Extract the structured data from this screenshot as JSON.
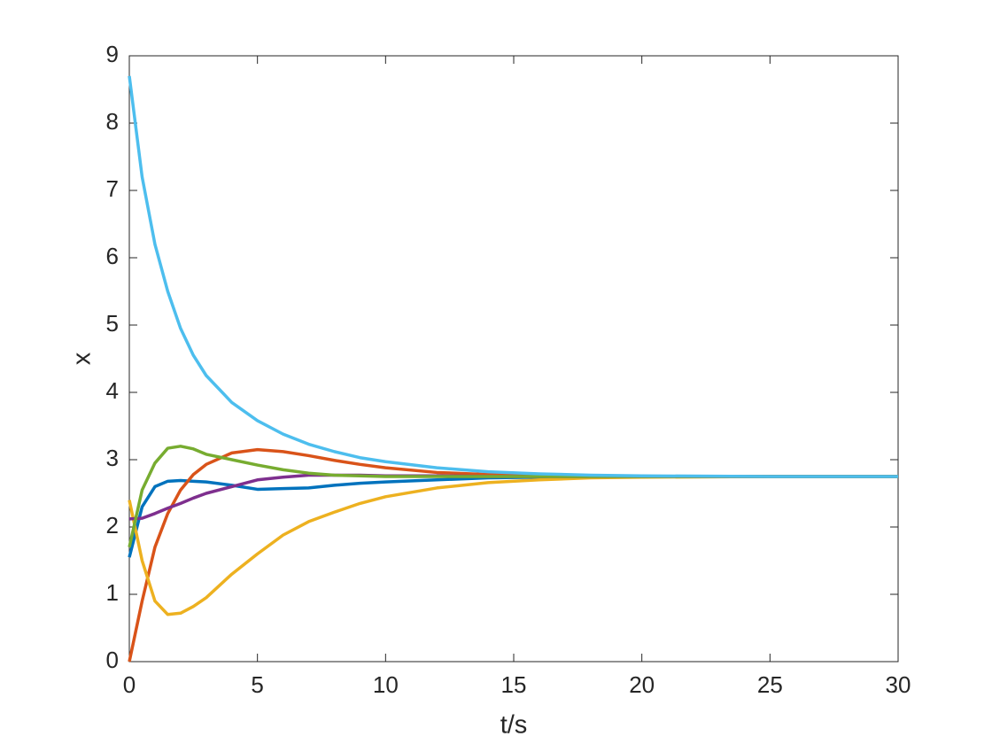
{
  "chart_data": {
    "type": "line",
    "xlabel": "t/s",
    "ylabel": "x",
    "x": [
      0,
      0.5,
      1,
      1.5,
      2,
      2.5,
      3,
      4,
      5,
      6,
      7,
      8,
      9,
      10,
      12,
      14,
      16,
      18,
      20,
      25,
      30
    ],
    "series": [
      {
        "color": "#0072BD",
        "values": [
          1.55,
          2.3,
          2.6,
          2.68,
          2.69,
          2.68,
          2.67,
          2.62,
          2.56,
          2.57,
          2.58,
          2.62,
          2.65,
          2.67,
          2.7,
          2.73,
          2.74,
          2.75,
          2.75,
          2.75,
          2.75
        ]
      },
      {
        "color": "#D95319",
        "values": [
          0,
          0.9,
          1.7,
          2.2,
          2.55,
          2.78,
          2.93,
          3.1,
          3.15,
          3.12,
          3.06,
          2.99,
          2.93,
          2.88,
          2.81,
          2.78,
          2.76,
          2.75,
          2.75,
          2.75,
          2.75
        ]
      },
      {
        "color": "#EDB120",
        "values": [
          2.4,
          1.5,
          0.9,
          0.7,
          0.72,
          0.82,
          0.95,
          1.3,
          1.6,
          1.88,
          2.08,
          2.22,
          2.35,
          2.45,
          2.58,
          2.66,
          2.7,
          2.73,
          2.74,
          2.75,
          2.75
        ]
      },
      {
        "color": "#7E2F8E",
        "values": [
          2.12,
          2.13,
          2.2,
          2.28,
          2.35,
          2.43,
          2.5,
          2.6,
          2.7,
          2.74,
          2.77,
          2.77,
          2.77,
          2.76,
          2.76,
          2.75,
          2.75,
          2.75,
          2.75,
          2.75,
          2.75
        ]
      },
      {
        "color": "#77AC30",
        "values": [
          1.7,
          2.55,
          2.95,
          3.17,
          3.2,
          3.16,
          3.08,
          3.0,
          2.92,
          2.85,
          2.8,
          2.77,
          2.76,
          2.75,
          2.75,
          2.75,
          2.75,
          2.75,
          2.75,
          2.75,
          2.75
        ]
      },
      {
        "color": "#4DBEEE",
        "values": [
          8.7,
          7.2,
          6.2,
          5.5,
          4.95,
          4.55,
          4.25,
          3.85,
          3.58,
          3.38,
          3.23,
          3.12,
          3.03,
          2.97,
          2.88,
          2.82,
          2.79,
          2.77,
          2.76,
          2.75,
          2.75
        ]
      }
    ],
    "xlim": [
      0,
      30
    ],
    "xticks": [
      0,
      5,
      10,
      15,
      20,
      25,
      30
    ],
    "ylim": [
      0,
      9
    ],
    "yticks": [
      0,
      1,
      2,
      3,
      4,
      5,
      6,
      7,
      8,
      9
    ]
  }
}
